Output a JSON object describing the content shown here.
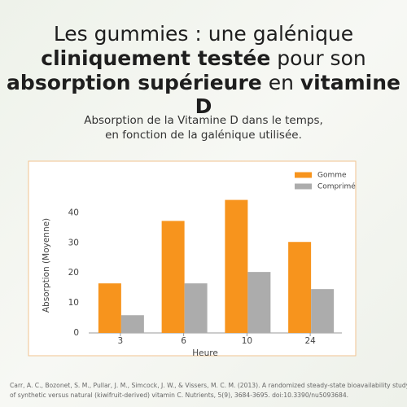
{
  "header": {
    "line1": "Les gummies : une galénique",
    "line2": [
      {
        "text": "cliniquement testée",
        "bold": true
      },
      {
        "text": " pour son",
        "bold": false
      }
    ],
    "line3": [
      {
        "text": "absorption supérieure",
        "bold": true
      },
      {
        "text": " en ",
        "bold": false
      },
      {
        "text": "vitamine D",
        "bold": true
      }
    ],
    "subtitle": [
      "Absorption de la Vitamine D dans le temps,",
      "en fonction de la galénique utilisée."
    ]
  },
  "chart_data": {
    "type": "bar",
    "x_label": "Heure",
    "y_label": "Absorption (Moyenne)",
    "categories": [
      "3",
      "6",
      "10",
      "24"
    ],
    "series": [
      {
        "name": "Gomme",
        "color": "#f7941d",
        "values": [
          16.5,
          37.3,
          44.3,
          30.3
        ]
      },
      {
        "name": "Comprimé",
        "color": "#acacac",
        "values": [
          5.9,
          16.5,
          20.3,
          14.6
        ]
      }
    ],
    "ylim": [
      0,
      45
    ],
    "yticks": [
      0,
      10,
      20,
      30,
      40
    ],
    "legend": "top-right",
    "grid": false
  },
  "citation": [
    "Carr, A. C., Bozonet, S. M., Pullar, J. M., Simcock, J. W., & Vissers, M. C. M. (2013). A randomized steady-state bioavailability study",
    "of synthetic versus natural (kiwifruit-derived) vitamin C. Nutrients, 5(9), 3684-3695. doi:10.3390/nu5093684."
  ]
}
